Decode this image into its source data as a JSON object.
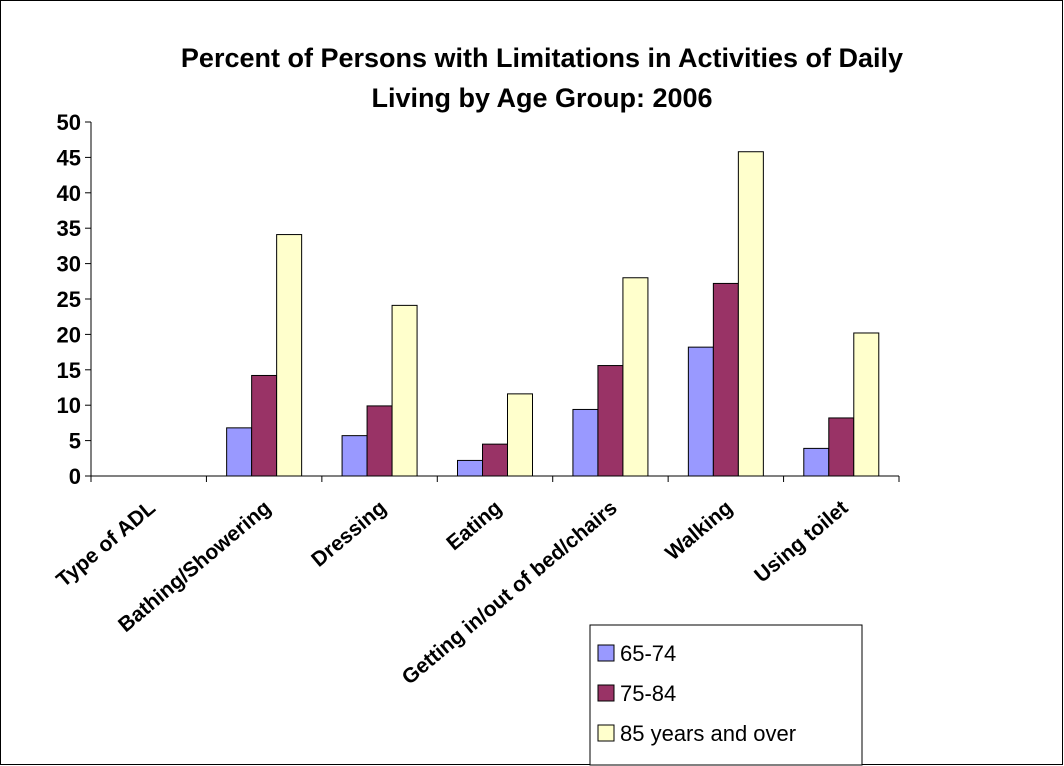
{
  "chart_data": {
    "type": "bar",
    "title": "Percent of Persons with Limitations in Activities of Daily Living by Age Group: 2006",
    "title_lines": [
      "Percent of Persons with Limitations in Activities of Daily",
      "Living by Age Group: 2006"
    ],
    "categories": [
      "Type of ADL",
      "Bathing/Showering",
      "Dressing",
      "Eating",
      "Getting in/out of bed/chairs",
      "Walking",
      "Using toilet"
    ],
    "series": [
      {
        "name": "65-74",
        "color": "#9999ff",
        "values": [
          null,
          6.8,
          5.7,
          2.2,
          9.4,
          18.2,
          3.9
        ]
      },
      {
        "name": "75-84",
        "color": "#993366",
        "values": [
          null,
          14.2,
          9.9,
          4.5,
          15.6,
          27.2,
          8.2
        ]
      },
      {
        "name": "85 years and over",
        "color": "#ffffcc",
        "values": [
          null,
          34.1,
          24.1,
          11.6,
          28.0,
          45.8,
          20.2
        ]
      }
    ],
    "ylim": [
      0,
      50
    ],
    "yticks": [
      "0",
      "5",
      "10",
      "15",
      "20",
      "25",
      "30",
      "35",
      "40",
      "45",
      "50"
    ],
    "xlabel": "",
    "ylabel": "",
    "grid": false,
    "legend_position": "bottom-right"
  }
}
